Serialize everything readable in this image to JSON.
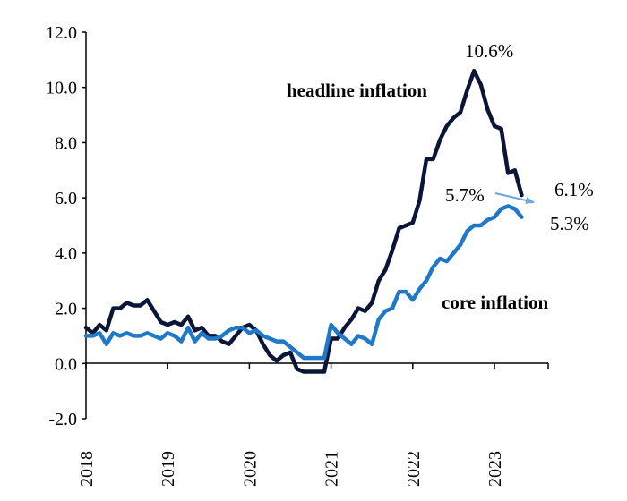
{
  "chart_data": {
    "type": "line",
    "title": "",
    "xlabel": "",
    "ylabel": "",
    "ylim": [
      -2.0,
      12.0
    ],
    "y_ticks": [
      "-2.0",
      "0.0",
      "2.0",
      "4.0",
      "6.0",
      "8.0",
      "10.0",
      "12.0"
    ],
    "x_ticks": [
      "2018",
      "2019",
      "2020",
      "2021",
      "2022",
      "2023"
    ],
    "x_tick_orientation": "vertical",
    "x_range": [
      "2018-01",
      "2023-05"
    ],
    "grid": false,
    "legend": "none; series labelled directly on the plot",
    "x": [
      "2018-01",
      "2018-02",
      "2018-03",
      "2018-04",
      "2018-05",
      "2018-06",
      "2018-07",
      "2018-08",
      "2018-09",
      "2018-10",
      "2018-11",
      "2018-12",
      "2019-01",
      "2019-02",
      "2019-03",
      "2019-04",
      "2019-05",
      "2019-06",
      "2019-07",
      "2019-08",
      "2019-09",
      "2019-10",
      "2019-11",
      "2019-12",
      "2020-01",
      "2020-02",
      "2020-03",
      "2020-04",
      "2020-05",
      "2020-06",
      "2020-07",
      "2020-08",
      "2020-09",
      "2020-10",
      "2020-11",
      "2020-12",
      "2021-01",
      "2021-02",
      "2021-03",
      "2021-04",
      "2021-05",
      "2021-06",
      "2021-07",
      "2021-08",
      "2021-09",
      "2021-10",
      "2021-11",
      "2021-12",
      "2022-01",
      "2022-02",
      "2022-03",
      "2022-04",
      "2022-05",
      "2022-06",
      "2022-07",
      "2022-08",
      "2022-09",
      "2022-10",
      "2022-11",
      "2022-12",
      "2023-01",
      "2023-02",
      "2023-03",
      "2023-04",
      "2023-05"
    ],
    "series": [
      {
        "name": "headline inflation",
        "color": "#0b1538",
        "values": [
          1.3,
          1.1,
          1.4,
          1.2,
          2.0,
          2.0,
          2.2,
          2.1,
          2.1,
          2.3,
          1.9,
          1.5,
          1.4,
          1.5,
          1.4,
          1.7,
          1.2,
          1.3,
          1.0,
          1.0,
          0.8,
          0.7,
          1.0,
          1.3,
          1.4,
          1.2,
          0.7,
          0.3,
          0.1,
          0.3,
          0.4,
          -0.2,
          -0.3,
          -0.3,
          -0.3,
          -0.3,
          0.9,
          0.9,
          1.3,
          1.6,
          2.0,
          1.9,
          2.2,
          3.0,
          3.4,
          4.1,
          4.9,
          5.0,
          5.1,
          5.9,
          7.4,
          7.4,
          8.1,
          8.6,
          8.9,
          9.1,
          9.9,
          10.6,
          10.1,
          9.2,
          8.6,
          8.5,
          6.9,
          7.0,
          6.1
        ],
        "end_label": "6.1%"
      },
      {
        "name": "core inflation",
        "color": "#1f78c8",
        "values": [
          1.0,
          1.0,
          1.1,
          0.7,
          1.1,
          1.0,
          1.1,
          1.0,
          1.0,
          1.1,
          1.0,
          0.9,
          1.1,
          1.0,
          0.8,
          1.3,
          0.8,
          1.1,
          0.9,
          0.9,
          1.0,
          1.2,
          1.3,
          1.3,
          1.1,
          1.2,
          1.0,
          0.9,
          0.8,
          0.8,
          0.6,
          0.4,
          0.2,
          0.2,
          0.2,
          0.2,
          1.4,
          1.1,
          0.9,
          0.7,
          1.0,
          0.9,
          0.7,
          1.6,
          1.9,
          2.0,
          2.6,
          2.6,
          2.3,
          2.7,
          3.0,
          3.5,
          3.8,
          3.7,
          4.0,
          4.3,
          4.8,
          5.0,
          5.0,
          5.2,
          5.3,
          5.6,
          5.7,
          5.6,
          5.3
        ],
        "peak_label": "5.7%",
        "end_label": "5.3%"
      }
    ],
    "annotations": [
      {
        "text": "headline inflation",
        "series": "headline inflation"
      },
      {
        "text": "core inflation",
        "series": "core inflation"
      },
      {
        "text": "10.6%",
        "series": "headline inflation",
        "at": "2022-10"
      },
      {
        "text": "6.1%",
        "series": "headline inflation",
        "at": "2023-05"
      },
      {
        "text": "5.7%",
        "series": "core inflation",
        "at": "2023-03",
        "arrow": true
      },
      {
        "text": "5.3%",
        "series": "core inflation",
        "at": "2023-05"
      }
    ]
  }
}
